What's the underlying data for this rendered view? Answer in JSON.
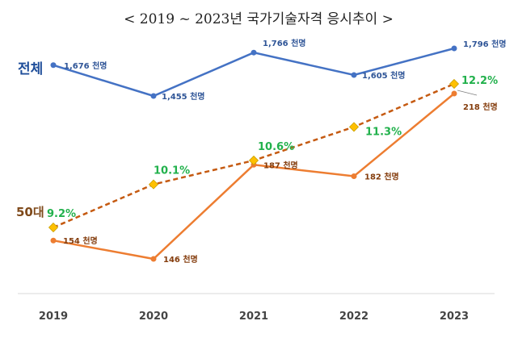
{
  "chart_data": {
    "type": "line",
    "title": "< 2019 ~ 2023년 국가기술자격 응시추이 >",
    "categories": [
      "2019",
      "2020",
      "2021",
      "2022",
      "2023"
    ],
    "series": [
      {
        "name": "전체",
        "values": [
          1676,
          1455,
          1766,
          1605,
          1796
        ],
        "labels": [
          "1,676 천명",
          "1,455 천명",
          "1,766 천명",
          "1,605 천명",
          "1,796 천명"
        ],
        "color": "#4472c4"
      },
      {
        "name": "50대",
        "values": [
          154,
          146,
          187,
          182,
          218
        ],
        "labels": [
          "154 천명",
          "146 천명",
          "187 천명",
          "182 천명",
          "218 천명"
        ],
        "color": "#ed7d31"
      },
      {
        "name": "",
        "values": [
          9.2,
          10.1,
          10.6,
          11.3,
          12.2
        ],
        "labels": [
          "9.2%",
          "10.1%",
          "10.6%",
          "11.3%",
          "12.2%"
        ],
        "color": "#c55a11",
        "marker_color": "#ffc000",
        "label_color": "#22b14c",
        "style": "dashed"
      }
    ],
    "grid": false,
    "legend": "none"
  }
}
